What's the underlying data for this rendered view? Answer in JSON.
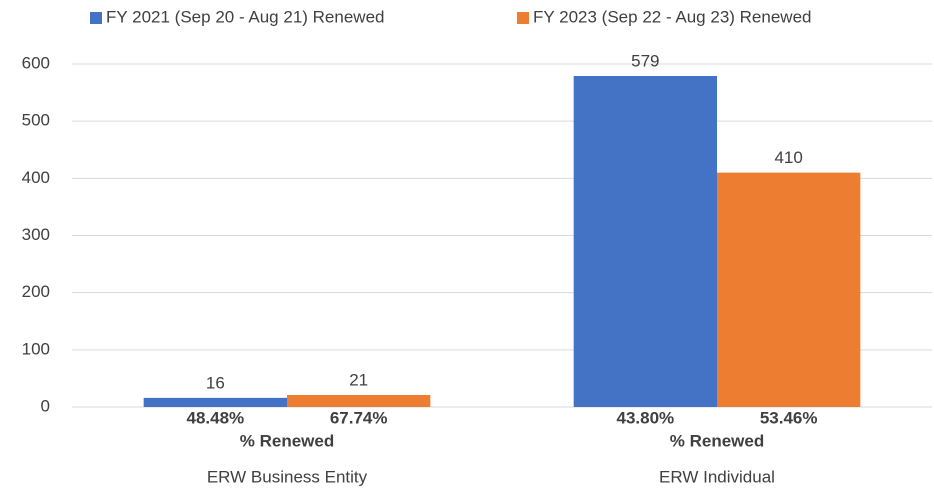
{
  "chart_data": {
    "type": "bar",
    "categories": [
      "ERW Business Entity",
      "ERW Individual"
    ],
    "series": [
      {
        "name": "FY 2021 (Sep 20 - Aug 21) Renewed",
        "color": "#4472c4",
        "values": [
          16,
          579
        ],
        "annotations": [
          "48.48%",
          "43.80%"
        ]
      },
      {
        "name": "FY 2023 (Sep 22 - Aug 23) Renewed",
        "color": "#ed7d31",
        "values": [
          21,
          410
        ],
        "annotations": [
          "67.74%",
          "53.46%"
        ]
      }
    ],
    "annotation_title": "% Renewed",
    "ylim": [
      0,
      600
    ],
    "yticks": [
      0,
      100,
      200,
      300,
      400,
      500,
      600
    ],
    "grid": true,
    "legend": "top"
  }
}
